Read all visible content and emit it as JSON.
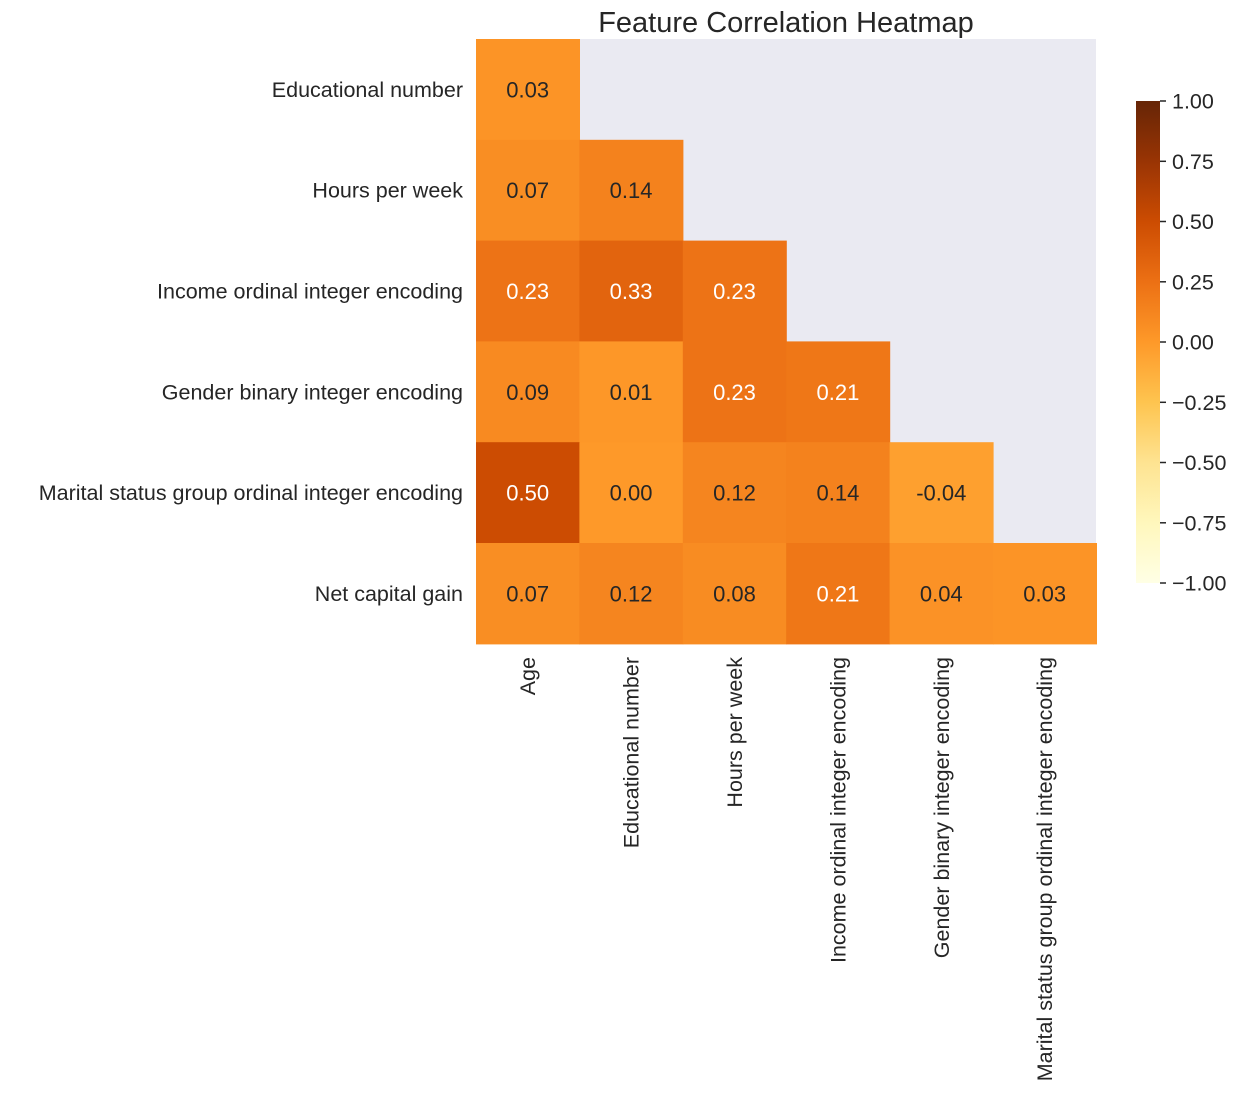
{
  "chart_data": {
    "type": "heatmap",
    "title": "Feature Correlation Heatmap",
    "x_labels": [
      "Age",
      "Educational number",
      "Hours per week",
      "Income ordinal integer encoding",
      "Gender binary integer encoding",
      "Marital status group ordinal integer encoding"
    ],
    "y_labels": [
      "Educational number",
      "Hours per week",
      "Income ordinal integer encoding",
      "Gender binary integer encoding",
      "Marital status group ordinal integer encoding",
      "Net capital gain"
    ],
    "values": [
      [
        0.03,
        null,
        null,
        null,
        null,
        null
      ],
      [
        0.07,
        0.14,
        null,
        null,
        null,
        null
      ],
      [
        0.23,
        0.33,
        0.23,
        null,
        null,
        null
      ],
      [
        0.09,
        0.01,
        0.23,
        0.21,
        null,
        null
      ],
      [
        0.5,
        0.0,
        0.12,
        0.14,
        -0.04,
        null
      ],
      [
        0.07,
        0.12,
        0.08,
        0.21,
        0.04,
        0.03
      ]
    ],
    "value_labels": [
      [
        "0.03",
        "",
        "",
        "",
        "",
        ""
      ],
      [
        "0.07",
        "0.14",
        "",
        "",
        "",
        ""
      ],
      [
        "0.23",
        "0.33",
        "0.23",
        "",
        "",
        ""
      ],
      [
        "0.09",
        "0.01",
        "0.23",
        "0.21",
        "",
        ""
      ],
      [
        "0.50",
        "0.00",
        "0.12",
        "0.14",
        "-0.04",
        ""
      ],
      [
        "0.07",
        "0.12",
        "0.08",
        "0.21",
        "0.04",
        "0.03"
      ]
    ],
    "vmin": -1.0,
    "vmax": 1.0,
    "colormap": "YlOrBr",
    "mask": "upper-triangle",
    "mask_color": "#eaeaf2",
    "colorbar": {
      "ticks": [
        1.0,
        0.75,
        0.5,
        0.25,
        0.0,
        -0.25,
        -0.5,
        -0.75,
        -1.0
      ],
      "tick_labels": [
        "1.00",
        "0.75",
        "0.50",
        "0.25",
        "0.00",
        "−0.25",
        "−0.50",
        "−0.75",
        "−1.00"
      ],
      "position": "right"
    }
  }
}
